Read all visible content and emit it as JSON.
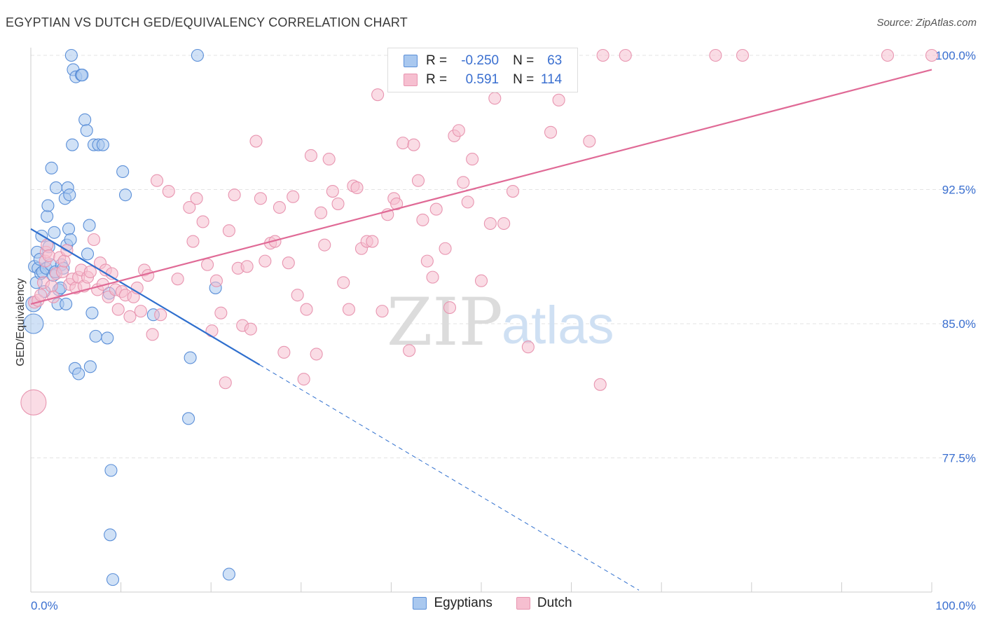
{
  "header": {
    "title": "EGYPTIAN VS DUTCH GED/EQUIVALENCY CORRELATION CHART",
    "source": "Source: ZipAtlas.com"
  },
  "watermark": {
    "zip": "ZIP",
    "atlas": "atlas"
  },
  "colors": {
    "blue_fill": "#a9c8ef",
    "blue_stroke": "#5b8fd8",
    "blue_line": "#2f6fce",
    "pink_fill": "#f6bfd0",
    "pink_stroke": "#e895b0",
    "pink_line": "#e06a96",
    "grid": "#e3e3e3",
    "tick_text": "#3a6fd0"
  },
  "stats": {
    "egyptians": {
      "r_label": "R =",
      "r_value": "-0.250",
      "n_label": "N =",
      "n_value": "63"
    },
    "dutch": {
      "r_label": "R =",
      "r_value": "0.591",
      "n_label": "N =",
      "n_value": "114"
    }
  },
  "chart_data": {
    "type": "scatter",
    "ylabel": "GED/Equivalency",
    "xlim": [
      0,
      100
    ],
    "ylim": [
      70,
      100
    ],
    "x_tick_labels": [
      {
        "x": 0,
        "label": "0.0%"
      },
      {
        "x": 100,
        "label": "100.0%"
      }
    ],
    "y_ticks": [
      {
        "y": 77.5,
        "label": "77.5%"
      },
      {
        "y": 85.0,
        "label": "85.0%"
      },
      {
        "y": 92.5,
        "label": "92.5%"
      },
      {
        "y": 100.0,
        "label": "100.0%"
      }
    ],
    "legend": [
      "Egyptians",
      "Dutch"
    ],
    "series": [
      {
        "name": "Egyptians",
        "trend": {
          "x0": 0,
          "y0": 90.3,
          "x1": 25.4,
          "y1": 82.7,
          "dash_to_x": 67.5
        },
        "points": [
          [
            0.3,
            86.1
          ],
          [
            0.3,
            85.0
          ],
          [
            0.4,
            88.2
          ],
          [
            0.6,
            87.3
          ],
          [
            0.7,
            89.0
          ],
          [
            0.8,
            88.1
          ],
          [
            1.0,
            88.6
          ],
          [
            1.1,
            87.8
          ],
          [
            1.2,
            89.9
          ],
          [
            1.3,
            87.9
          ],
          [
            1.5,
            86.8
          ],
          [
            1.7,
            88.1
          ],
          [
            1.8,
            91.0
          ],
          [
            1.9,
            91.6
          ],
          [
            2.0,
            89.3
          ],
          [
            2.2,
            88.3
          ],
          [
            2.3,
            93.7
          ],
          [
            2.5,
            87.7
          ],
          [
            2.6,
            90.1
          ],
          [
            2.7,
            87.9
          ],
          [
            2.8,
            92.6
          ],
          [
            3.0,
            86.1
          ],
          [
            3.1,
            86.9
          ],
          [
            3.3,
            87.0
          ],
          [
            3.4,
            88.3
          ],
          [
            3.6,
            88.1
          ],
          [
            3.8,
            92.0
          ],
          [
            3.9,
            86.1
          ],
          [
            4.0,
            89.4
          ],
          [
            4.1,
            92.6
          ],
          [
            4.2,
            90.3
          ],
          [
            4.3,
            92.2
          ],
          [
            4.4,
            89.7
          ],
          [
            4.5,
            100.0
          ],
          [
            4.6,
            95.0
          ],
          [
            4.7,
            99.2
          ],
          [
            4.9,
            82.5
          ],
          [
            5.0,
            98.8
          ],
          [
            5.3,
            82.2
          ],
          [
            5.6,
            98.9
          ],
          [
            5.7,
            98.9
          ],
          [
            6.0,
            96.4
          ],
          [
            6.2,
            95.8
          ],
          [
            6.3,
            88.9
          ],
          [
            6.5,
            90.5
          ],
          [
            6.6,
            82.6
          ],
          [
            6.8,
            85.6
          ],
          [
            7.0,
            95.0
          ],
          [
            7.2,
            84.3
          ],
          [
            7.5,
            95.0
          ],
          [
            8.0,
            95.0
          ],
          [
            8.5,
            84.2
          ],
          [
            8.7,
            86.7
          ],
          [
            8.8,
            73.2
          ],
          [
            8.9,
            76.8
          ],
          [
            9.1,
            70.7
          ],
          [
            10.2,
            93.5
          ],
          [
            10.5,
            92.2
          ],
          [
            13.6,
            85.5
          ],
          [
            17.5,
            79.7
          ],
          [
            17.7,
            83.1
          ],
          [
            18.5,
            100.0
          ],
          [
            20.5,
            87.0
          ],
          [
            22.0,
            71.0
          ]
        ]
      },
      {
        "name": "Dutch",
        "trend": {
          "x0": 0,
          "y0": 86.1,
          "x1": 100,
          "y1": 99.2
        },
        "points": [
          [
            0.3,
            80.6
          ],
          [
            0.4,
            86.2
          ],
          [
            0.8,
            86.3
          ],
          [
            1.1,
            86.6
          ],
          [
            1.4,
            87.3
          ],
          [
            1.6,
            88.5
          ],
          [
            1.7,
            89.0
          ],
          [
            1.8,
            89.4
          ],
          [
            2.0,
            88.8
          ],
          [
            2.3,
            87.1
          ],
          [
            2.5,
            86.5
          ],
          [
            2.8,
            87.8
          ],
          [
            3.2,
            88.7
          ],
          [
            3.5,
            87.9
          ],
          [
            3.7,
            88.5
          ],
          [
            4.0,
            89.1
          ],
          [
            4.3,
            87.2
          ],
          [
            4.6,
            87.5
          ],
          [
            5.0,
            87.0
          ],
          [
            5.3,
            87.6
          ],
          [
            5.6,
            88.0
          ],
          [
            5.9,
            87.1
          ],
          [
            6.3,
            87.6
          ],
          [
            6.6,
            87.9
          ],
          [
            7.0,
            89.7
          ],
          [
            7.4,
            86.9
          ],
          [
            7.7,
            88.4
          ],
          [
            8.0,
            87.2
          ],
          [
            8.3,
            88.0
          ],
          [
            8.6,
            86.5
          ],
          [
            9.0,
            87.8
          ],
          [
            9.4,
            86.9
          ],
          [
            9.7,
            85.8
          ],
          [
            10.1,
            86.8
          ],
          [
            10.5,
            86.6
          ],
          [
            11.0,
            85.4
          ],
          [
            11.4,
            86.5
          ],
          [
            11.8,
            87.0
          ],
          [
            12.2,
            85.7
          ],
          [
            12.6,
            88.0
          ],
          [
            13.0,
            87.7
          ],
          [
            13.5,
            84.4
          ],
          [
            14.0,
            93.0
          ],
          [
            14.4,
            85.5
          ],
          [
            15.3,
            92.4
          ],
          [
            16.3,
            87.5
          ],
          [
            17.6,
            91.5
          ],
          [
            18.0,
            89.6
          ],
          [
            18.4,
            92.0
          ],
          [
            19.1,
            90.7
          ],
          [
            19.6,
            88.3
          ],
          [
            20.1,
            84.6
          ],
          [
            20.6,
            87.4
          ],
          [
            21.1,
            85.6
          ],
          [
            21.6,
            81.7
          ],
          [
            22.0,
            90.2
          ],
          [
            22.6,
            92.2
          ],
          [
            23.0,
            88.1
          ],
          [
            23.5,
            84.9
          ],
          [
            24.0,
            88.2
          ],
          [
            24.4,
            84.7
          ],
          [
            25.0,
            95.2
          ],
          [
            25.5,
            92.0
          ],
          [
            26.0,
            88.5
          ],
          [
            26.6,
            89.5
          ],
          [
            27.1,
            89.6
          ],
          [
            27.6,
            91.5
          ],
          [
            28.1,
            83.4
          ],
          [
            28.6,
            88.4
          ],
          [
            29.1,
            92.1
          ],
          [
            29.6,
            86.6
          ],
          [
            30.3,
            81.9
          ],
          [
            30.6,
            85.8
          ],
          [
            31.1,
            94.4
          ],
          [
            31.7,
            83.3
          ],
          [
            32.2,
            91.2
          ],
          [
            32.6,
            89.4
          ],
          [
            33.1,
            94.2
          ],
          [
            33.5,
            92.4
          ],
          [
            34.1,
            91.7
          ],
          [
            34.7,
            87.3
          ],
          [
            35.3,
            85.8
          ],
          [
            35.8,
            92.7
          ],
          [
            36.2,
            92.6
          ],
          [
            36.7,
            89.2
          ],
          [
            37.3,
            89.6
          ],
          [
            37.9,
            89.6
          ],
          [
            38.5,
            97.8
          ],
          [
            39.0,
            85.7
          ],
          [
            39.6,
            91.1
          ],
          [
            40.3,
            92.0
          ],
          [
            40.6,
            91.7
          ],
          [
            41.3,
            95.1
          ],
          [
            42.0,
            83.5
          ],
          [
            42.5,
            95.0
          ],
          [
            43.0,
            93.0
          ],
          [
            43.5,
            90.8
          ],
          [
            44.0,
            88.5
          ],
          [
            44.6,
            87.6
          ],
          [
            45.0,
            91.4
          ],
          [
            46.0,
            89.2
          ],
          [
            46.5,
            85.9
          ],
          [
            47.0,
            95.5
          ],
          [
            47.5,
            95.8
          ],
          [
            48.0,
            92.9
          ],
          [
            48.5,
            91.8
          ],
          [
            49.0,
            94.2
          ],
          [
            50.0,
            87.4
          ],
          [
            51.0,
            90.6
          ],
          [
            51.5,
            97.6
          ],
          [
            52.5,
            90.6
          ],
          [
            53.5,
            92.4
          ],
          [
            55.2,
            83.7
          ],
          [
            57.7,
            95.7
          ],
          [
            58.6,
            97.5
          ],
          [
            62.0,
            95.2
          ],
          [
            63.2,
            81.6
          ],
          [
            63.5,
            100.0
          ],
          [
            66.0,
            100.0
          ],
          [
            76.0,
            100.0
          ],
          [
            79.0,
            100.0
          ],
          [
            95.1,
            100.0
          ],
          [
            100.0,
            100.0
          ]
        ]
      }
    ]
  }
}
